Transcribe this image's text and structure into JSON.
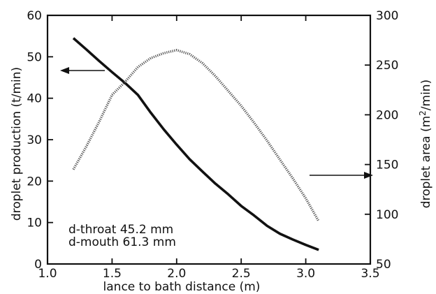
{
  "chart_data": {
    "type": "line",
    "xlabel": "lance to bath distance (m)",
    "ylabel_left": "droplet production (t/min)",
    "ylabel_right_prefix": "droplet area (m",
    "ylabel_right_sup": "2",
    "ylabel_right_suffix": "/min)",
    "xlim": [
      1.0,
      3.5
    ],
    "ylim_left": [
      0,
      60
    ],
    "ylim_right": [
      50,
      300
    ],
    "x_ticks": [
      1.0,
      1.5,
      2.0,
      2.5,
      3.0,
      3.5
    ],
    "x_tick_labels": [
      "1.0",
      "1.5",
      "2.0",
      "2.5",
      "3.0",
      "3.5"
    ],
    "y_left_ticks": [
      0,
      10,
      20,
      30,
      40,
      50,
      60
    ],
    "y_left_tick_labels": [
      "0",
      "10",
      "20",
      "30",
      "40",
      "50",
      "60"
    ],
    "y_right_ticks": [
      50,
      100,
      150,
      200,
      250,
      300
    ],
    "y_right_tick_labels": [
      "50",
      "100",
      "150",
      "200",
      "250",
      "300"
    ],
    "grid": false,
    "series": [
      {
        "axis": "left",
        "style": "solid",
        "color": "#111111",
        "x": [
          1.2,
          1.3,
          1.4,
          1.5,
          1.6,
          1.7,
          1.8,
          1.9,
          2.0,
          2.1,
          2.2,
          2.3,
          2.4,
          2.5,
          2.6,
          2.7,
          2.8,
          2.9,
          3.0,
          3.1
        ],
        "y": [
          54.5,
          51.8,
          49.0,
          46.3,
          43.7,
          40.8,
          36.5,
          32.5,
          28.8,
          25.3,
          22.3,
          19.4,
          16.8,
          14.0,
          11.7,
          9.2,
          7.3,
          5.9,
          4.6,
          3.4
        ]
      },
      {
        "axis": "right",
        "style": "dotted",
        "color": "#555555",
        "x": [
          1.2,
          1.3,
          1.4,
          1.5,
          1.6,
          1.7,
          1.8,
          1.9,
          2.0,
          2.1,
          2.2,
          2.3,
          2.4,
          2.5,
          2.6,
          2.7,
          2.8,
          2.9,
          3.0,
          3.1
        ],
        "y": [
          145,
          168,
          193,
          220,
          233,
          248,
          257,
          262,
          265,
          261,
          252,
          239,
          224,
          209,
          192,
          174,
          155,
          136,
          116,
          93
        ]
      }
    ],
    "annotations": [
      "d-throat 45.2 mm",
      "d-mouth 61.3 mm"
    ]
  }
}
